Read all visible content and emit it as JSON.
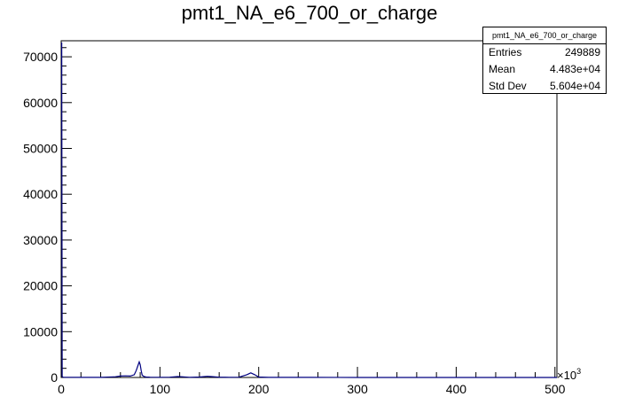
{
  "title": "pmt1_NA_e6_700_or_charge",
  "statbox": {
    "name": "pmt1_NA_e6_700_or_charge",
    "rows": [
      {
        "label": "Entries",
        "value": "249889"
      },
      {
        "label": "Mean",
        "value": "4.483e+04"
      },
      {
        "label": "Std Dev",
        "value": "5.604e+04"
      }
    ]
  },
  "chart_data": {
    "type": "area",
    "title": "pmt1_NA_e6_700_or_charge",
    "xlabel": "",
    "ylabel": "",
    "x_multiplier_label": "×10",
    "x_multiplier_exp": "3",
    "xlim": [
      0,
      502
    ],
    "ylim": [
      0,
      73500
    ],
    "x_ticks": [
      0,
      100,
      200,
      300,
      400,
      500
    ],
    "x_tick_labels": [
      "0",
      "100",
      "200",
      "300",
      "400",
      "500"
    ],
    "y_ticks": [
      0,
      10000,
      20000,
      30000,
      40000,
      50000,
      60000,
      70000
    ],
    "y_tick_labels": [
      "0",
      "10000",
      "20000",
      "30000",
      "40000",
      "50000",
      "60000",
      "70000"
    ],
    "line_color": "#000080",
    "series": [
      {
        "x": [
          0,
          0.5,
          1,
          2,
          5,
          20,
          40,
          55,
          60,
          65,
          70,
          74,
          76,
          78,
          79,
          80,
          81,
          82,
          84,
          86,
          90,
          100,
          110,
          118,
          122,
          130,
          140,
          148,
          152,
          160,
          170,
          180,
          188,
          192,
          196,
          200,
          210,
          250,
          300,
          400,
          502
        ],
        "values": [
          73000,
          73000,
          200,
          60,
          30,
          10,
          10,
          150,
          300,
          350,
          300,
          600,
          1500,
          2800,
          3400,
          2800,
          1500,
          500,
          200,
          100,
          50,
          30,
          50,
          200,
          150,
          40,
          100,
          250,
          200,
          50,
          30,
          50,
          600,
          1000,
          600,
          100,
          20,
          10,
          5,
          2,
          0
        ]
      }
    ]
  }
}
